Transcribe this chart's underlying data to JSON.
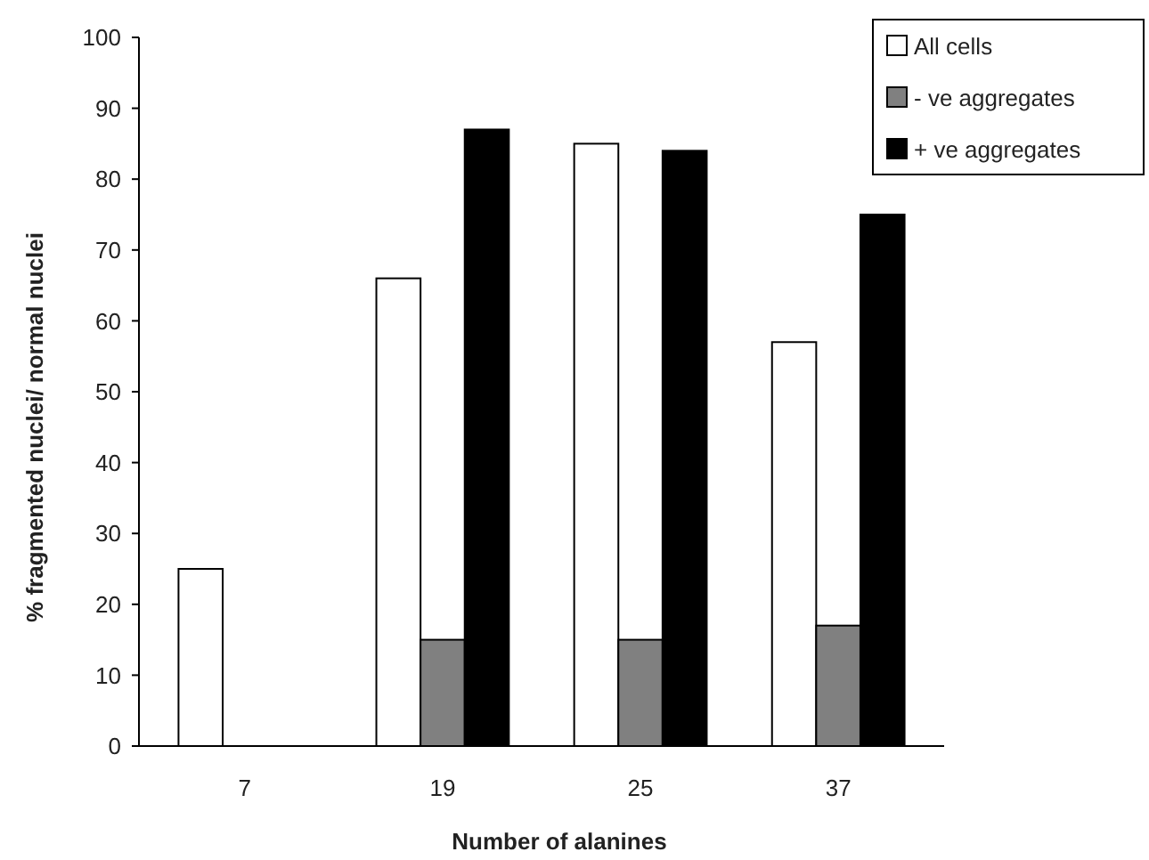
{
  "chart_data": {
    "type": "bar",
    "xlabel": "Number of alanines",
    "ylabel": "% fragmented nuclei/ normal nuclei",
    "categories": [
      "7",
      "19",
      "25",
      "37"
    ],
    "series": [
      {
        "name": "All cells",
        "color": "#ffffff",
        "values": [
          25,
          66,
          85,
          57
        ]
      },
      {
        "name": "- ve aggregates",
        "color": "#808080",
        "values": [
          null,
          15,
          15,
          17
        ]
      },
      {
        "name": "+ ve aggregates",
        "color": "#000000",
        "values": [
          null,
          87,
          84,
          75
        ]
      }
    ],
    "ylim": [
      0,
      100
    ],
    "yticks": [
      0,
      10,
      20,
      30,
      40,
      50,
      60,
      70,
      80,
      90,
      100
    ],
    "grid": false,
    "legend": "top right"
  }
}
